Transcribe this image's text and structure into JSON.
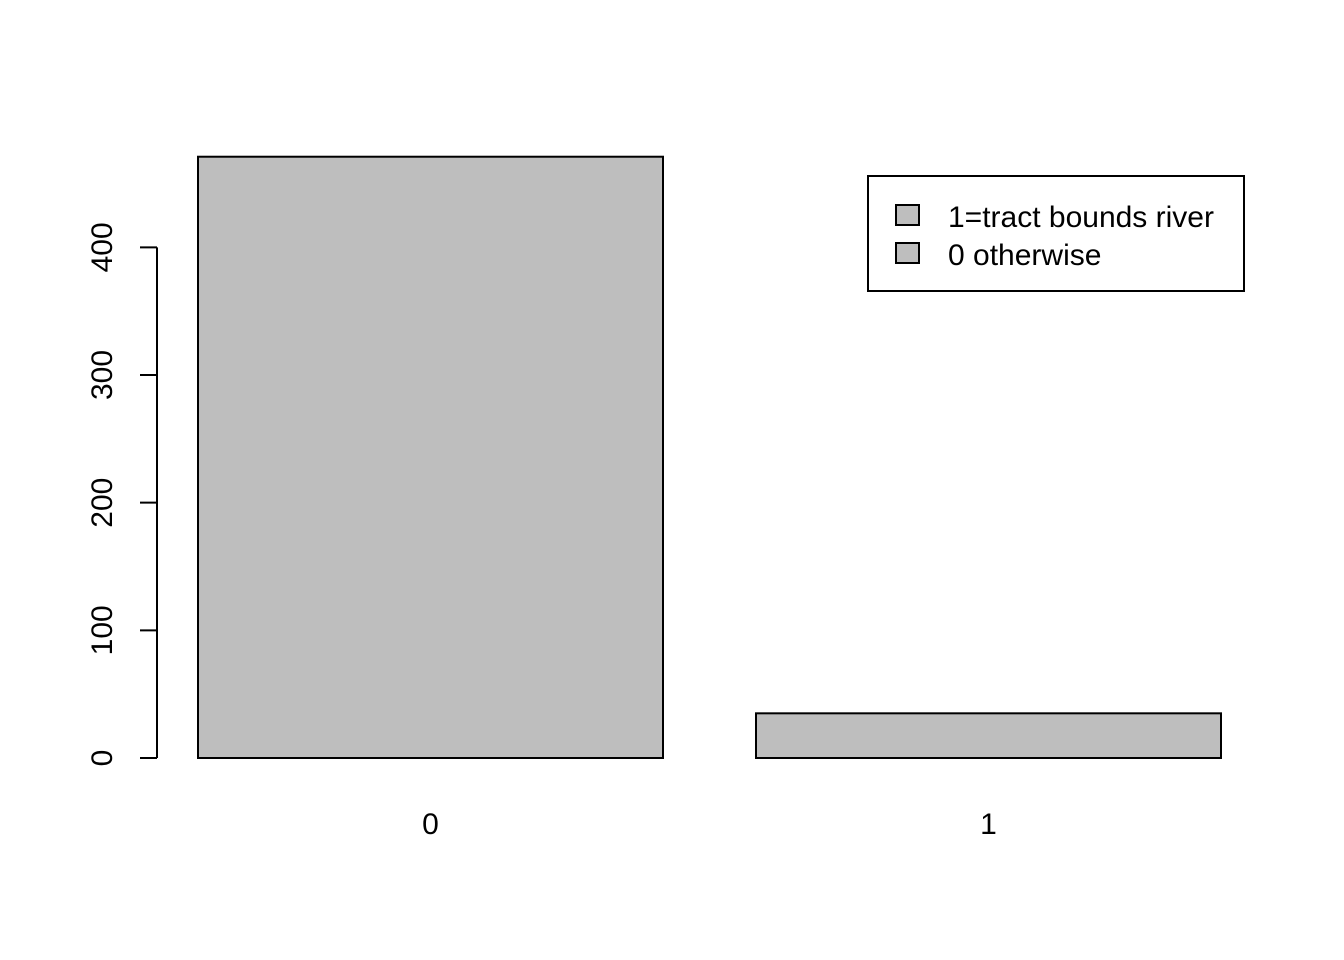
{
  "chart_data": {
    "type": "bar",
    "categories": [
      "0",
      "1"
    ],
    "values": [
      471,
      35
    ],
    "title": "",
    "xlabel": "",
    "ylabel": "",
    "ylim": [
      0,
      471
    ],
    "yticks": [
      0,
      100,
      200,
      300,
      400
    ],
    "grid": false,
    "legend": {
      "position": "top-right",
      "entries": [
        "1=tract bounds river",
        "0 otherwise"
      ]
    },
    "colors": {
      "bar_fill": "#bebebe",
      "bar_stroke": "#000000",
      "axis": "#000000"
    }
  }
}
